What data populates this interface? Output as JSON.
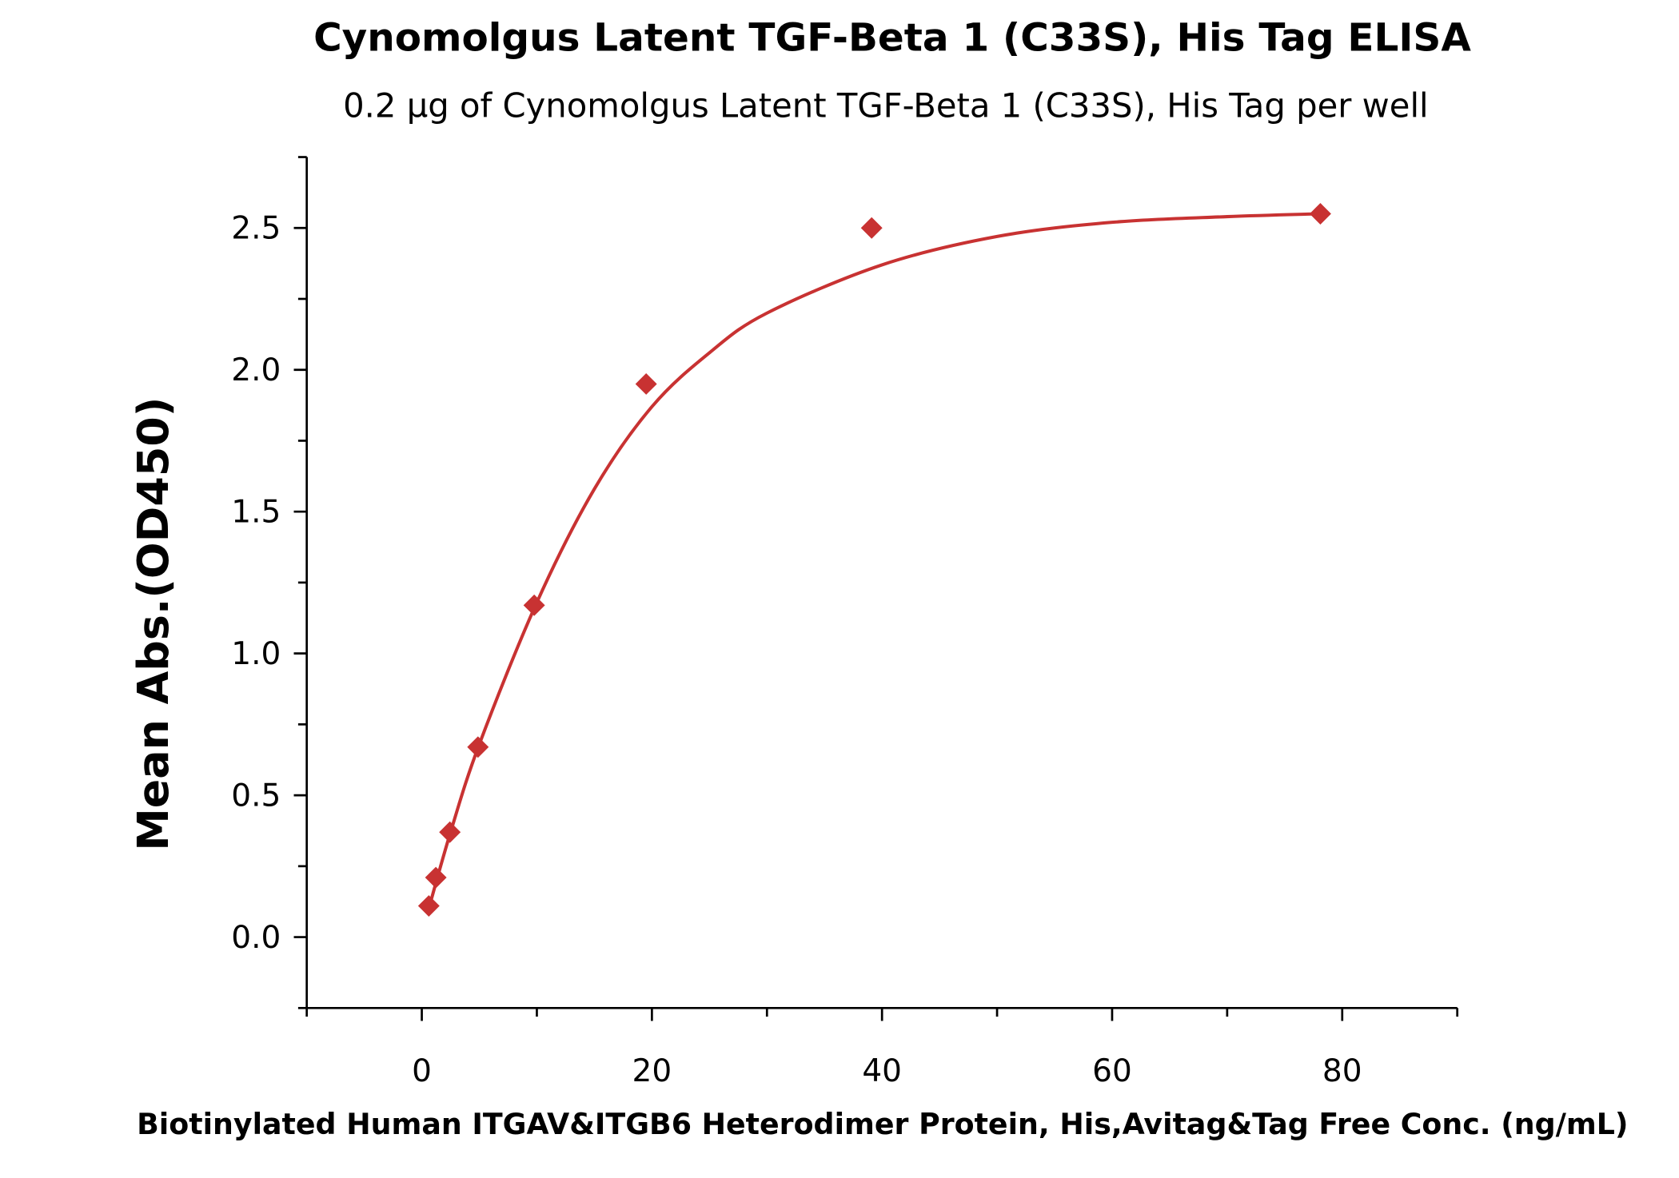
{
  "chart_data": {
    "type": "scatter",
    "title": "Cynomolgus Latent TGF-Beta 1 (C33S), His Tag ELISA",
    "subtitle": "0.2 µg of Cynomolgus Latent TGF-Beta 1 (C33S), His Tag per well",
    "xlabel": "Biotinylated Human ITGAV&ITGB6 Heterodimer Protein, His,Avitag&Tag Free Conc. (ng/mL)",
    "ylabel": "Mean Abs.(OD450)",
    "xlim": [
      -10,
      90
    ],
    "ylim": [
      -0.25,
      2.75
    ],
    "xticks": [
      0,
      20,
      40,
      60,
      80
    ],
    "xtick_labels": [
      "0",
      "20",
      "40",
      "60",
      "80"
    ],
    "yticks": [
      0,
      0.5,
      1,
      1.5,
      2,
      2.5
    ],
    "ytick_labels": [
      "0.0",
      "0.5",
      "1.0",
      "1.5",
      "2.0",
      "2.5"
    ],
    "grid": false,
    "color": "#c83232",
    "marker": "diamond",
    "points": {
      "x": [
        0.61,
        1.22,
        2.44,
        4.88,
        9.77,
        19.5,
        39.1,
        78.1
      ],
      "y": [
        0.11,
        0.21,
        0.37,
        0.67,
        1.17,
        1.95,
        2.5,
        2.55
      ]
    },
    "fit_curve": {
      "x": [
        0.6,
        2.5,
        5,
        10,
        15,
        20,
        25,
        30,
        40,
        50,
        60,
        70,
        78
      ],
      "y": [
        0.1,
        0.37,
        0.68,
        1.18,
        1.58,
        1.87,
        2.06,
        2.2,
        2.37,
        2.47,
        2.52,
        2.54,
        2.55
      ]
    }
  }
}
